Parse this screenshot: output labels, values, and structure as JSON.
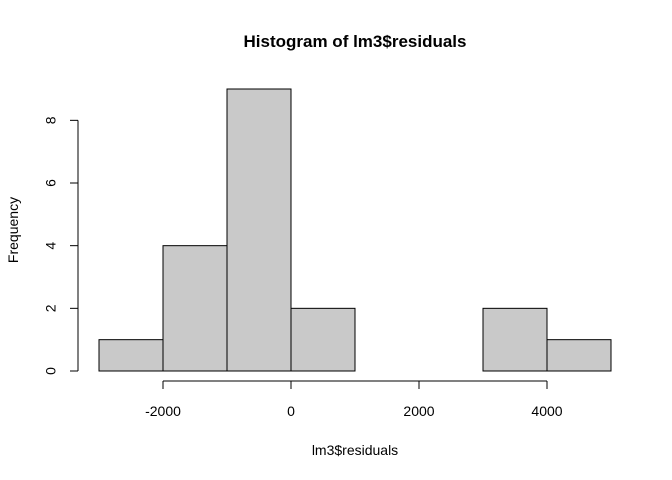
{
  "chart_data": {
    "type": "bar",
    "title": "Histogram of lm3$residuals",
    "xlabel": "lm3$residuals",
    "ylabel": "Frequency",
    "bin_edges": [
      -3000,
      -2000,
      -1000,
      0,
      1000,
      2000,
      3000,
      4000,
      5000
    ],
    "values": [
      1,
      4,
      9,
      2,
      0,
      0,
      2,
      1
    ],
    "x_ticks": [
      -2000,
      0,
      2000,
      4000
    ],
    "x_tick_labels": [
      "-2000",
      "0",
      "2000",
      "4000"
    ],
    "y_ticks": [
      0,
      2,
      4,
      6,
      8
    ],
    "y_tick_labels": [
      "0",
      "2",
      "4",
      "6",
      "8"
    ],
    "xlim": [
      -3000,
      5000
    ],
    "ylim": [
      0,
      9
    ],
    "grid": false,
    "bar_fill": "#c9c9c9",
    "bar_stroke": "#000000"
  }
}
